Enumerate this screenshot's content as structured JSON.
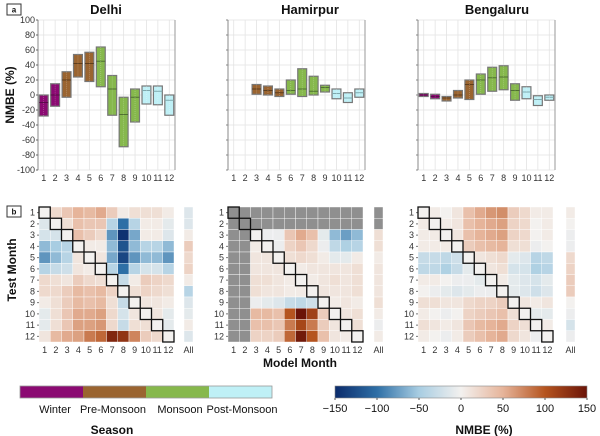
{
  "figure": {
    "panel_labels": [
      "a",
      "b"
    ],
    "season_legend": {
      "title": "Season",
      "items": [
        {
          "label": "Winter",
          "color": "#8b0a72"
        },
        {
          "label": "Pre-Monsoon",
          "color": "#9a6430"
        },
        {
          "label": "Monsoon",
          "color": "#86b84c"
        },
        {
          "label": "Post-Monsoon",
          "color": "#bff0f6"
        }
      ]
    },
    "colorbar": {
      "title": "NMBE (%)",
      "ticks": [
        "−150",
        "−100",
        "−50",
        "0",
        "50",
        "100",
        "150"
      ],
      "range": [
        -150,
        150
      ],
      "colors": [
        "#0b2b6b",
        "#2e6fa6",
        "#a8cde2",
        "#f3f1ef",
        "#e6b49a",
        "#b5541f",
        "#6b1408"
      ]
    },
    "heatmap_xlabel": "Model Month",
    "heatmap_ylabel": "Test Month",
    "all_label": "All"
  },
  "chart_data": [
    {
      "type": "bar",
      "subtype": "floating-box",
      "title": "Delhi",
      "xlabel": "",
      "ylabel": "NMBE (%)",
      "ylim": [
        -100,
        100
      ],
      "yticks": [
        -100,
        -80,
        -60,
        -40,
        -20,
        0,
        20,
        40,
        60,
        80,
        100
      ],
      "categories": [
        "1",
        "2",
        "3",
        "4",
        "5",
        "6",
        "7",
        "8",
        "9",
        "10",
        "11",
        "12"
      ],
      "season": [
        "Winter",
        "Winter",
        "Pre-Monsoon",
        "Pre-Monsoon",
        "Pre-Monsoon",
        "Monsoon",
        "Monsoon",
        "Monsoon",
        "Monsoon",
        "Post-Monsoon",
        "Post-Monsoon",
        "Post-Monsoon"
      ],
      "low": [
        -28,
        -15,
        -3,
        24,
        18,
        11,
        -27,
        -69,
        -36,
        -12,
        -13,
        -27
      ],
      "mid": [
        -10,
        0,
        20,
        42,
        42,
        45,
        8,
        -26,
        -3,
        6,
        5,
        -7
      ],
      "high": [
        0,
        15,
        31,
        54,
        57,
        64,
        26,
        -3,
        8,
        12,
        12,
        0
      ],
      "grid": true
    },
    {
      "type": "bar",
      "subtype": "floating-box",
      "title": "Hamirpur",
      "xlabel": "",
      "ylabel": "",
      "ylim": [
        -100,
        100
      ],
      "categories": [
        "1",
        "2",
        "3",
        "4",
        "5",
        "6",
        "7",
        "8",
        "9",
        "10",
        "11",
        "12"
      ],
      "season": [
        "Winter",
        "Winter",
        "Pre-Monsoon",
        "Pre-Monsoon",
        "Pre-Monsoon",
        "Monsoon",
        "Monsoon",
        "Monsoon",
        "Monsoon",
        "Post-Monsoon",
        "Post-Monsoon",
        "Post-Monsoon"
      ],
      "low": [
        null,
        null,
        1,
        0,
        -2,
        1,
        -2,
        0,
        4,
        -5,
        -10,
        -3
      ],
      "mid": [
        null,
        null,
        8,
        6,
        3,
        6,
        8,
        5,
        10,
        2,
        -4,
        3
      ],
      "high": [
        null,
        null,
        14,
        12,
        8,
        20,
        35,
        25,
        13,
        8,
        3,
        8
      ],
      "grid": true
    },
    {
      "type": "bar",
      "subtype": "floating-box",
      "title": "Bengaluru",
      "xlabel": "",
      "ylabel": "",
      "ylim": [
        -100,
        100
      ],
      "categories": [
        "1",
        "2",
        "3",
        "4",
        "5",
        "6",
        "7",
        "8",
        "9",
        "10",
        "11",
        "12"
      ],
      "season": [
        "Winter",
        "Winter",
        "Pre-Monsoon",
        "Pre-Monsoon",
        "Pre-Monsoon",
        "Monsoon",
        "Monsoon",
        "Monsoon",
        "Monsoon",
        "Post-Monsoon",
        "Post-Monsoon",
        "Post-Monsoon"
      ],
      "low": [
        -2,
        -5,
        -8,
        -4,
        -6,
        1,
        5,
        7,
        -7,
        -5,
        -14,
        -7
      ],
      "mid": [
        0,
        -2,
        -4,
        0,
        14,
        20,
        23,
        24,
        6,
        4,
        -6,
        -3
      ],
      "high": [
        2,
        1,
        -2,
        6,
        20,
        28,
        37,
        39,
        15,
        11,
        -1,
        0
      ],
      "grid": true
    },
    {
      "type": "heatmap",
      "title": "Delhi",
      "xlabel": "Model Month",
      "ylabel": "Test Month",
      "x": [
        "1",
        "2",
        "3",
        "4",
        "5",
        "6",
        "7",
        "8",
        "9",
        "10",
        "11",
        "12"
      ],
      "y": [
        "1",
        "2",
        "3",
        "4",
        "5",
        "6",
        "7",
        "8",
        "9",
        "10",
        "11",
        "12"
      ],
      "zlim": [
        -150,
        150
      ],
      "values": [
        [
          0,
          20,
          35,
          50,
          45,
          55,
          30,
          5,
          15,
          15,
          15,
          5
        ],
        [
          -15,
          0,
          15,
          40,
          35,
          35,
          -40,
          -100,
          -40,
          5,
          5,
          -10
        ],
        [
          -20,
          -20,
          0,
          40,
          30,
          20,
          -80,
          -145,
          -70,
          5,
          5,
          -15
        ],
        [
          -60,
          -50,
          -40,
          0,
          5,
          5,
          -60,
          -120,
          -60,
          -40,
          -40,
          -60
        ],
        [
          -80,
          -60,
          -40,
          10,
          0,
          10,
          -70,
          -130,
          -80,
          -60,
          -60,
          -80
        ],
        [
          -40,
          -30,
          -25,
          10,
          5,
          0,
          -40,
          -100,
          -40,
          -20,
          -20,
          -40
        ],
        [
          20,
          15,
          10,
          30,
          20,
          15,
          0,
          -30,
          5,
          30,
          25,
          20
        ],
        [
          20,
          20,
          30,
          45,
          40,
          45,
          25,
          0,
          15,
          25,
          20,
          15
        ],
        [
          5,
          15,
          30,
          45,
          40,
          45,
          15,
          -30,
          0,
          10,
          10,
          5
        ],
        [
          -10,
          15,
          35,
          55,
          55,
          60,
          20,
          -20,
          10,
          0,
          10,
          -10
        ],
        [
          -10,
          15,
          35,
          60,
          60,
          65,
          20,
          -30,
          15,
          15,
          0,
          -10
        ],
        [
          10,
          45,
          55,
          60,
          80,
          90,
          135,
          125,
          75,
          30,
          20,
          0
        ]
      ],
      "all": [
        -15,
        -15,
        5,
        30,
        20,
        25,
        5,
        -40,
        -15,
        -10,
        5,
        -15
      ],
      "missing_rows": []
    },
    {
      "type": "heatmap",
      "title": "Hamirpur",
      "xlabel": "Model Month",
      "ylabel": "Test Month",
      "x": [
        "1",
        "2",
        "3",
        "4",
        "5",
        "6",
        "7",
        "8",
        "9",
        "10",
        "11",
        "12"
      ],
      "y": [
        "1",
        "2",
        "3",
        "4",
        "5",
        "6",
        "7",
        "8",
        "9",
        "10",
        "11",
        "12"
      ],
      "zlim": [
        -150,
        150
      ],
      "values": [
        [
          null,
          null,
          null,
          null,
          null,
          null,
          null,
          null,
          null,
          null,
          null,
          null
        ],
        [
          null,
          null,
          null,
          null,
          null,
          null,
          null,
          null,
          null,
          null,
          null,
          null
        ],
        [
          null,
          null,
          0,
          -5,
          -5,
          35,
          55,
          40,
          -10,
          -60,
          -75,
          -60
        ],
        [
          null,
          null,
          5,
          0,
          -5,
          25,
          35,
          20,
          -5,
          -35,
          -45,
          -40
        ],
        [
          null,
          null,
          10,
          10,
          0,
          15,
          20,
          15,
          5,
          -10,
          -10,
          5
        ],
        [
          null,
          null,
          10,
          10,
          10,
          0,
          5,
          10,
          10,
          10,
          10,
          15
        ],
        [
          null,
          null,
          15,
          15,
          10,
          5,
          0,
          5,
          10,
          15,
          10,
          15
        ],
        [
          null,
          null,
          15,
          10,
          10,
          5,
          5,
          0,
          10,
          10,
          10,
          15
        ],
        [
          null,
          null,
          -5,
          -10,
          -15,
          -30,
          -35,
          -25,
          0,
          5,
          10,
          5
        ],
        [
          null,
          null,
          45,
          45,
          40,
          100,
          150,
          115,
          30,
          0,
          10,
          15
        ],
        [
          null,
          null,
          40,
          40,
          35,
          80,
          110,
          80,
          30,
          10,
          0,
          15
        ],
        [
          null,
          null,
          25,
          25,
          30,
          90,
          145,
          100,
          40,
          10,
          5,
          0
        ]
      ],
      "all": [
        null,
        null,
        15,
        15,
        5,
        10,
        10,
        10,
        15,
        5,
        -5,
        5
      ],
      "missing_rows": [
        1,
        2
      ]
    },
    {
      "type": "heatmap",
      "title": "Bengaluru",
      "xlabel": "Model Month",
      "ylabel": "Test Month",
      "x": [
        "1",
        "2",
        "3",
        "4",
        "5",
        "6",
        "7",
        "8",
        "9",
        "10",
        "11",
        "12"
      ],
      "y": [
        "1",
        "2",
        "3",
        "4",
        "5",
        "6",
        "7",
        "8",
        "9",
        "10",
        "11",
        "12"
      ],
      "zlim": [
        -150,
        150
      ],
      "values": [
        [
          0,
          5,
          0,
          10,
          40,
          55,
          65,
          70,
          30,
          20,
          5,
          5
        ],
        [
          5,
          0,
          5,
          10,
          40,
          50,
          55,
          60,
          25,
          20,
          0,
          5
        ],
        [
          5,
          5,
          0,
          10,
          40,
          50,
          55,
          60,
          25,
          20,
          0,
          5
        ],
        [
          5,
          5,
          5,
          0,
          30,
          40,
          45,
          50,
          15,
          15,
          -5,
          0
        ],
        [
          -30,
          -30,
          -35,
          -25,
          0,
          10,
          15,
          20,
          -10,
          -15,
          -40,
          -35
        ],
        [
          -35,
          -35,
          -45,
          -30,
          -10,
          0,
          10,
          15,
          -20,
          -20,
          -45,
          -40
        ],
        [
          5,
          5,
          0,
          -5,
          -5,
          -10,
          0,
          5,
          -10,
          -15,
          -20,
          -10
        ],
        [
          0,
          -5,
          -10,
          -15,
          -10,
          -5,
          -5,
          0,
          -10,
          -15,
          -25,
          -15
        ],
        [
          15,
          15,
          10,
          10,
          20,
          25,
          25,
          30,
          0,
          10,
          5,
          10
        ],
        [
          5,
          0,
          -5,
          0,
          25,
          30,
          35,
          40,
          15,
          0,
          -10,
          -10
        ],
        [
          15,
          10,
          5,
          10,
          35,
          45,
          50,
          55,
          25,
          15,
          0,
          5
        ],
        [
          5,
          0,
          -5,
          5,
          30,
          40,
          50,
          55,
          20,
          10,
          -5,
          0
        ]
      ],
      "all": [
        5,
        0,
        -5,
        -5,
        20,
        25,
        30,
        30,
        0,
        -5,
        -20,
        -5
      ],
      "missing_rows": []
    }
  ]
}
